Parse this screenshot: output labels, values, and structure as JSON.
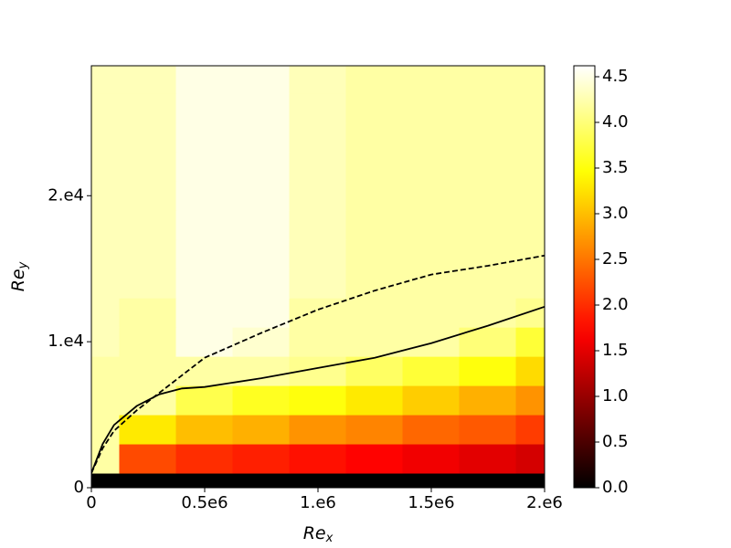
{
  "chart_data": {
    "type": "contour",
    "colormap": "hot",
    "xlabel": "Re",
    "xlabel_sub": "x",
    "ylabel": "Re",
    "ylabel_sub": "y",
    "xlim": [
      0,
      2000000
    ],
    "ylim": [
      0,
      28900
    ],
    "xticks": [
      0,
      {
        "value": 500000,
        "label": "0.5e6"
      },
      {
        "value": 1000000,
        "label": "1.e6"
      },
      {
        "value": 1500000,
        "label": "1.5e6"
      },
      {
        "value": 2000000,
        "label": "2.e6"
      }
    ],
    "yticks": [
      0,
      {
        "value": 10000,
        "label": "1.e4"
      },
      {
        "value": 20000,
        "label": "2.e4"
      }
    ],
    "clim": [
      0,
      4.62
    ],
    "cticks": [
      {
        "value": 0,
        "label": "0.0"
      },
      0.5,
      {
        "value": 1,
        "label": "1.0"
      },
      1.5,
      {
        "value": 2,
        "label": "2.0"
      },
      2.5,
      {
        "value": 3,
        "label": "3.0"
      },
      3.5,
      {
        "value": 4,
        "label": "4.0"
      },
      4.5
    ],
    "x_grid": [
      0,
      250000,
      500000,
      750000,
      1000000,
      1250000,
      1500000,
      1750000,
      2000000
    ],
    "y_grid": [
      0,
      2000,
      4000,
      6000,
      8000,
      10000,
      12000,
      14000,
      16000,
      18000,
      20000,
      22000,
      24000,
      26000,
      28000
    ],
    "z": [
      [
        0,
        0,
        0,
        0,
        0,
        0,
        0,
        0,
        0
      ],
      [
        4.2,
        2.2,
        2.0,
        1.9,
        1.8,
        1.7,
        1.6,
        1.5,
        1.4
      ],
      [
        4.2,
        3.3,
        3.0,
        2.9,
        2.7,
        2.6,
        2.4,
        2.3,
        2.1
      ],
      [
        4.2,
        4.2,
        3.8,
        3.6,
        3.5,
        3.3,
        3.1,
        2.9,
        2.7
      ],
      [
        4.2,
        4.2,
        4.2,
        4.2,
        4.1,
        3.9,
        3.7,
        3.5,
        3.2
      ],
      [
        4.3,
        4.2,
        4.5,
        4.4,
        4.2,
        4.2,
        4.2,
        4.0,
        3.7
      ],
      [
        4.3,
        4.2,
        4.5,
        4.5,
        4.2,
        4.2,
        4.2,
        4.2,
        4.1
      ],
      [
        4.3,
        4.3,
        4.5,
        4.5,
        4.3,
        4.2,
        4.2,
        4.2,
        4.2
      ],
      [
        4.3,
        4.3,
        4.5,
        4.5,
        4.3,
        4.2,
        4.2,
        4.2,
        4.2
      ],
      [
        4.3,
        4.3,
        4.5,
        4.5,
        4.3,
        4.2,
        4.2,
        4.2,
        4.2
      ],
      [
        4.3,
        4.3,
        4.5,
        4.5,
        4.3,
        4.2,
        4.2,
        4.2,
        4.2
      ],
      [
        4.3,
        4.3,
        4.5,
        4.5,
        4.3,
        4.2,
        4.2,
        4.2,
        4.2
      ],
      [
        4.3,
        4.3,
        4.5,
        4.5,
        4.3,
        4.2,
        4.2,
        4.2,
        4.2
      ],
      [
        4.3,
        4.3,
        4.5,
        4.5,
        4.3,
        4.2,
        4.2,
        4.2,
        4.2
      ],
      [
        4.3,
        4.3,
        4.5,
        4.5,
        4.3,
        4.2,
        4.2,
        4.2,
        4.2
      ]
    ],
    "lines": [
      {
        "style": "solid",
        "color": "#000000",
        "x": [
          0,
          50000,
          100000,
          200000,
          300000,
          400000,
          500000,
          750000,
          1000000,
          1250000,
          1500000,
          1750000,
          2000000
        ],
        "y": [
          1000,
          3000,
          4300,
          5600,
          6400,
          6800,
          6900,
          7500,
          8200,
          8900,
          9900,
          11100,
          12400
        ]
      },
      {
        "style": "dashed",
        "color": "#000000",
        "x": [
          0,
          50000,
          100000,
          200000,
          300000,
          500000,
          750000,
          1000000,
          1250000,
          1500000,
          1750000,
          2000000
        ],
        "y": [
          1000,
          2700,
          3900,
          5300,
          6500,
          8900,
          10600,
          12200,
          13500,
          14600,
          15200,
          15900
        ]
      }
    ]
  }
}
